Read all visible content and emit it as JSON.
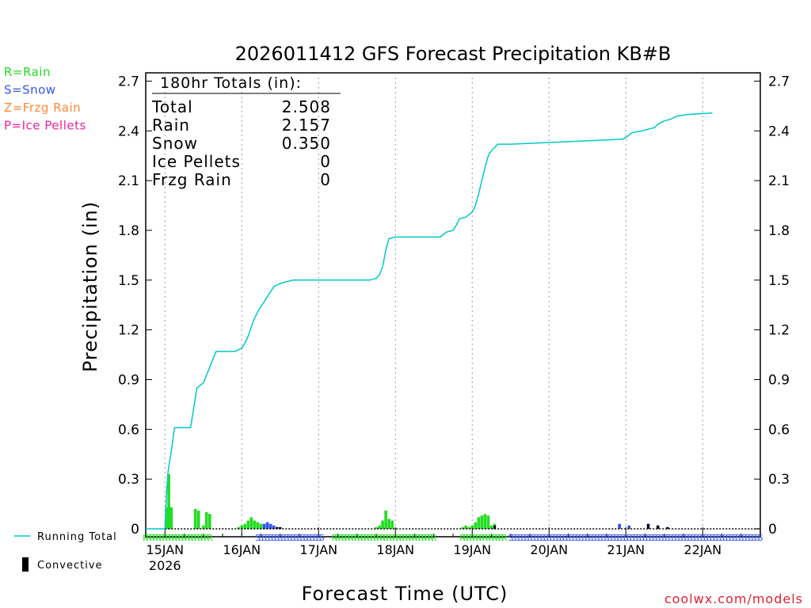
{
  "chart_data": {
    "type": "bar",
    "title": "2026011412 GFS Forecast Precipitation KB#B",
    "xlabel": "Forecast Time (UTC)",
    "ylabel": "Precipitation (in)",
    "ylim": [
      0,
      2.75
    ],
    "y_ticks": [
      "0",
      "0.3",
      "0.6",
      "0.9",
      "1.2",
      "1.5",
      "1.8",
      "2.1",
      "2.4",
      "2.7"
    ],
    "x_range_hours": [
      -6,
      186
    ],
    "x_ticks": [
      {
        "hour": 0,
        "label": "15JAN",
        "sublabel": "2026"
      },
      {
        "hour": 24,
        "label": "16JAN",
        "sublabel": ""
      },
      {
        "hour": 48,
        "label": "17JAN",
        "sublabel": ""
      },
      {
        "hour": 72,
        "label": "18JAN",
        "sublabel": ""
      },
      {
        "hour": 96,
        "label": "19JAN",
        "sublabel": ""
      },
      {
        "hour": 120,
        "label": "20JAN",
        "sublabel": ""
      },
      {
        "hour": 144,
        "label": "21JAN",
        "sublabel": ""
      },
      {
        "hour": 168,
        "label": "22JAN",
        "sublabel": ""
      }
    ],
    "grid": "vertical dotted lines at each day",
    "totals_box": {
      "heading": "180hr Totals (in):",
      "rows": [
        {
          "label": "Total",
          "value": "2.508"
        },
        {
          "label": "Rain",
          "value": "2.157"
        },
        {
          "label": "Snow",
          "value": "0.350"
        },
        {
          "label": "Ice Pellets",
          "value": "0"
        },
        {
          "label": "Frzg Rain",
          "value": "0"
        }
      ]
    },
    "type_legend": [
      {
        "text": "R=Rain",
        "color": "#22dd22"
      },
      {
        "text": "S=Snow",
        "color": "#3355ee"
      },
      {
        "text": "Z=Frzg Rain",
        "color": "#ff8833"
      },
      {
        "text": "P=Ice Pellets",
        "color": "#ee2299"
      }
    ],
    "series_legend": [
      {
        "text": "Running Total",
        "color": "#00c8c8"
      },
      {
        "text": "Convective",
        "color": "#000000"
      }
    ],
    "running_total": {
      "hours": [
        -6,
        0,
        0.5,
        1,
        2,
        3,
        6,
        8,
        10,
        12,
        16,
        18,
        19,
        22,
        24,
        25,
        26,
        27,
        28,
        29,
        30,
        31,
        32,
        33,
        34,
        36,
        40,
        44,
        52,
        60,
        64,
        66,
        67,
        68,
        69,
        70,
        72,
        84,
        86,
        88,
        90,
        91,
        92,
        94,
        96,
        97,
        98,
        99,
        100,
        101,
        102,
        103,
        104,
        108,
        120,
        132,
        143,
        144,
        146,
        149,
        153,
        154,
        156,
        158,
        160,
        164,
        171
      ],
      "values": [
        0,
        0,
        0.22,
        0.35,
        0.47,
        0.61,
        0.61,
        0.61,
        0.85,
        0.88,
        1.07,
        1.07,
        1.07,
        1.07,
        1.09,
        1.12,
        1.16,
        1.22,
        1.27,
        1.31,
        1.34,
        1.37,
        1.4,
        1.43,
        1.46,
        1.48,
        1.5,
        1.5,
        1.5,
        1.5,
        1.5,
        1.51,
        1.53,
        1.58,
        1.68,
        1.75,
        1.76,
        1.76,
        1.76,
        1.79,
        1.8,
        1.83,
        1.87,
        1.88,
        1.91,
        1.95,
        2.02,
        2.1,
        2.18,
        2.25,
        2.28,
        2.3,
        2.32,
        2.32,
        2.33,
        2.34,
        2.35,
        2.36,
        2.39,
        2.4,
        2.42,
        2.44,
        2.46,
        2.47,
        2.49,
        2.5,
        2.508
      ]
    },
    "precip_bars": [
      {
        "hour": 0.5,
        "value": 0.13,
        "type": "rain"
      },
      {
        "hour": 1.2,
        "value": 0.33,
        "type": "rain"
      },
      {
        "hour": 2,
        "value": 0.13,
        "type": "rain"
      },
      {
        "hour": 9.5,
        "value": 0.12,
        "type": "rain"
      },
      {
        "hour": 10.5,
        "value": 0.11,
        "type": "rain"
      },
      {
        "hour": 12,
        "value": 0.02,
        "type": "rain"
      },
      {
        "hour": 13,
        "value": 0.1,
        "type": "rain"
      },
      {
        "hour": 14,
        "value": 0.09,
        "type": "rain"
      },
      {
        "hour": 23,
        "value": 0.01,
        "type": "rain"
      },
      {
        "hour": 24,
        "value": 0.02,
        "type": "rain"
      },
      {
        "hour": 25,
        "value": 0.03,
        "type": "rain"
      },
      {
        "hour": 26,
        "value": 0.05,
        "type": "rain"
      },
      {
        "hour": 27,
        "value": 0.07,
        "type": "rain"
      },
      {
        "hour": 28,
        "value": 0.05,
        "type": "rain"
      },
      {
        "hour": 29,
        "value": 0.04,
        "type": "rain"
      },
      {
        "hour": 30,
        "value": 0.03,
        "type": "rain"
      },
      {
        "hour": 31,
        "value": 0.03,
        "type": "snow"
      },
      {
        "hour": 32,
        "value": 0.04,
        "type": "snow"
      },
      {
        "hour": 33,
        "value": 0.03,
        "type": "snow"
      },
      {
        "hour": 34,
        "value": 0.02,
        "type": "snow"
      },
      {
        "hour": 35,
        "value": 0.01,
        "type": "snow"
      },
      {
        "hour": 36,
        "value": 0.01,
        "type": "snow"
      },
      {
        "hour": 66,
        "value": 0.01,
        "type": "rain"
      },
      {
        "hour": 67,
        "value": 0.02,
        "type": "rain"
      },
      {
        "hour": 68,
        "value": 0.05,
        "type": "rain"
      },
      {
        "hour": 69,
        "value": 0.11,
        "type": "rain"
      },
      {
        "hour": 70,
        "value": 0.06,
        "type": "rain"
      },
      {
        "hour": 71,
        "value": 0.05,
        "type": "rain"
      },
      {
        "hour": 93,
        "value": 0.01,
        "type": "rain"
      },
      {
        "hour": 94,
        "value": 0.02,
        "type": "rain"
      },
      {
        "hour": 95,
        "value": 0.01,
        "type": "rain"
      },
      {
        "hour": 96,
        "value": 0.02,
        "type": "rain"
      },
      {
        "hour": 97,
        "value": 0.04,
        "type": "rain"
      },
      {
        "hour": 98,
        "value": 0.07,
        "type": "rain"
      },
      {
        "hour": 99,
        "value": 0.08,
        "type": "rain"
      },
      {
        "hour": 100,
        "value": 0.09,
        "type": "rain"
      },
      {
        "hour": 101,
        "value": 0.08,
        "type": "rain"
      },
      {
        "hour": 102,
        "value": 0.02,
        "type": "rain"
      },
      {
        "hour": 103,
        "value": 0.03,
        "type": "rain"
      },
      {
        "hour": 142,
        "value": 0.03,
        "type": "snow"
      },
      {
        "hour": 145,
        "value": 0.02,
        "type": "snow"
      },
      {
        "hour": 151,
        "value": 0.03,
        "type": "snow"
      },
      {
        "hour": 154,
        "value": 0.02,
        "type": "snow"
      },
      {
        "hour": 157,
        "value": 0.01,
        "type": "snow"
      }
    ],
    "convective_bars": [
      {
        "hour": 35,
        "value": 0.01
      },
      {
        "hour": 36,
        "value": 0.01
      },
      {
        "hour": 103,
        "value": 0.02
      },
      {
        "hour": 151,
        "value": 0.03
      },
      {
        "hour": 154,
        "value": 0.02
      },
      {
        "hour": 157,
        "value": 0.01
      }
    ],
    "type_strip": [
      {
        "from": -6,
        "to": 14,
        "letter": "R",
        "type": "rain"
      },
      {
        "from": 29,
        "to": 49,
        "letter": "S",
        "type": "snow"
      },
      {
        "from": 53,
        "to": 84,
        "letter": "R",
        "type": "rain"
      },
      {
        "from": 93,
        "to": 106,
        "letter": "R",
        "type": "rain"
      },
      {
        "from": 108,
        "to": 186,
        "letter": "S",
        "type": "snow"
      }
    ],
    "colors": {
      "rain": "#22dd22",
      "snow": "#3355ee",
      "frzg": "#ff8833",
      "ice": "#ee2299",
      "total": "#00c8c8",
      "convective": "#000000",
      "footer": "#dd2233"
    }
  },
  "footer": {
    "site": "coolwx.com/models"
  }
}
